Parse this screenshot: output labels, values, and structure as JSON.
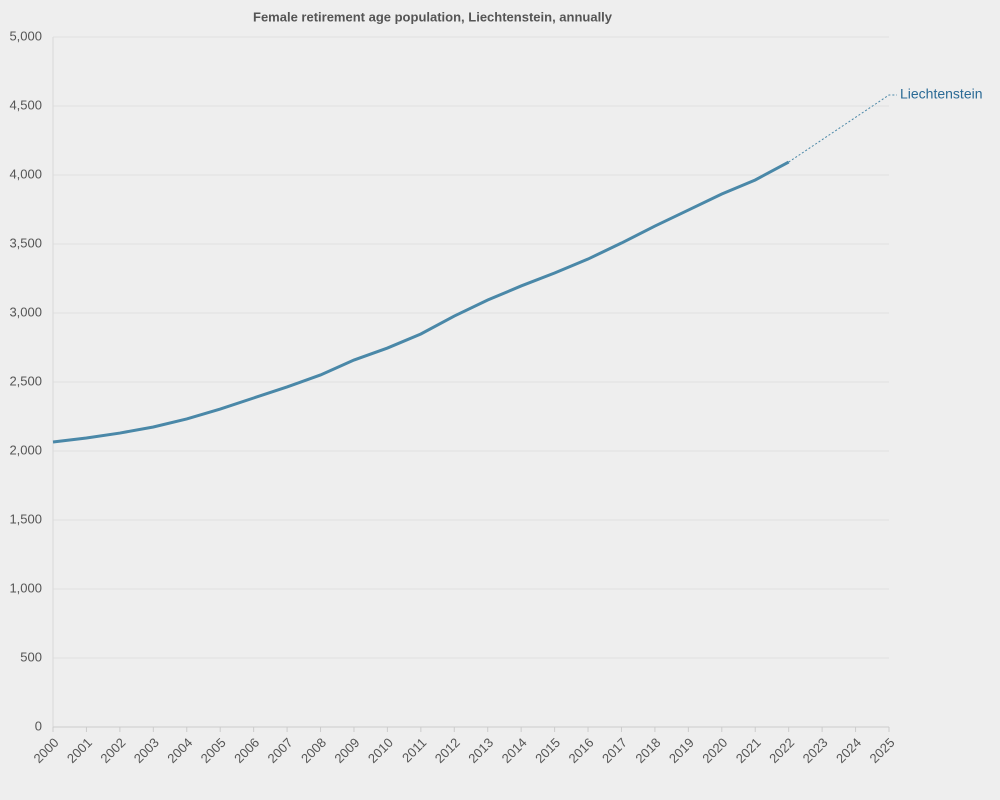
{
  "chart_data": {
    "type": "line",
    "title": "Female retirement age population, Liechtenstein, annually",
    "x": [
      2000,
      2001,
      2002,
      2003,
      2004,
      2005,
      2006,
      2007,
      2008,
      2009,
      2010,
      2011,
      2012,
      2013,
      2014,
      2015,
      2016,
      2017,
      2018,
      2019,
      2020,
      2021,
      2022
    ],
    "series": [
      {
        "name": "Liechtenstein",
        "color": "#4a88a8",
        "values": [
          2065,
          2094,
          2130,
          2174,
          2232,
          2304,
          2384,
          2464,
          2551,
          2659,
          2746,
          2848,
          2978,
          3094,
          3196,
          3290,
          3391,
          3507,
          3630,
          3746,
          3862,
          3964,
          4094
        ]
      }
    ],
    "xlim": [
      2000,
      2025
    ],
    "xticks": [
      2000,
      2001,
      2002,
      2003,
      2004,
      2005,
      2006,
      2007,
      2008,
      2009,
      2010,
      2011,
      2012,
      2013,
      2014,
      2015,
      2016,
      2017,
      2018,
      2019,
      2020,
      2021,
      2022,
      2023,
      2024,
      2025
    ],
    "ylim": [
      0,
      5000
    ],
    "yticks": [
      0,
      500,
      {
        "value": 1000,
        "label": "1,000"
      },
      {
        "value": 1500,
        "label": "1,500"
      },
      {
        "value": 2000,
        "label": "2,000"
      },
      {
        "value": 2500,
        "label": "2,500"
      },
      {
        "value": 3000,
        "label": "3,000"
      },
      {
        "value": 3500,
        "label": "3,500"
      },
      {
        "value": 4000,
        "label": "4,000"
      },
      {
        "value": 4500,
        "label": "4,500"
      },
      {
        "value": 5000,
        "label": "5,000"
      }
    ],
    "grid": true
  }
}
